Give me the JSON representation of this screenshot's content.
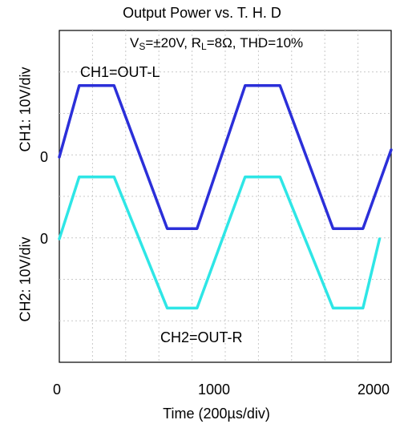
{
  "chart_data": {
    "type": "line",
    "title": "Output Power vs. T. H. D",
    "xlabel": "Time (200µs/div)",
    "ylabel_ch1": "CH1: 10V/div",
    "ylabel_ch2": "CH2: 10V/div",
    "xlim": [
      0,
      2000
    ],
    "x_ticks": [
      "0",
      "1000",
      "2000"
    ],
    "y_zero_label_ch1": "0",
    "y_zero_label_ch2": "0",
    "grid": true,
    "annotation_condition": {
      "v": "V",
      "v_sub": "S",
      "v_rest": "=±20V, R",
      "r_sub": "L",
      "r_rest": "=8Ω, THD=10%"
    },
    "series": [
      {
        "name": "CH1=OUT-L",
        "color": "#2b2fd9",
        "x": [
          0,
          120,
          330,
          650,
          830,
          1120,
          1330,
          1650,
          1830,
          2000
        ],
        "y": [
          0,
          19.6,
          19.6,
          -19.6,
          -19.6,
          19.6,
          19.6,
          -19.6,
          -19.6,
          2
        ]
      },
      {
        "name": "CH2=OUT-R",
        "color": "#2ee6e6",
        "x": [
          0,
          120,
          330,
          650,
          830,
          1120,
          1330,
          1650,
          1830,
          1930
        ],
        "y": [
          0,
          17,
          17,
          -19,
          -19,
          17,
          17,
          -19,
          -19,
          0
        ]
      }
    ]
  }
}
